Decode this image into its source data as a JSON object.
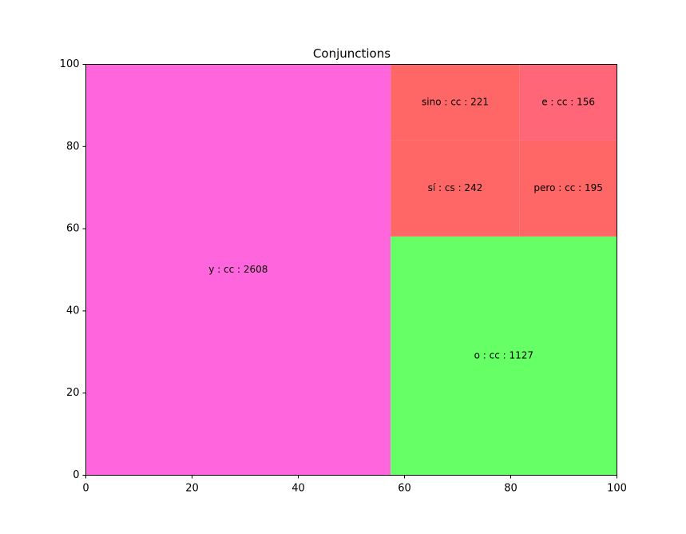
{
  "chart_data": {
    "type": "treemap",
    "title": "Conjunctions",
    "xlabel": "",
    "ylabel": "",
    "xlim": [
      0,
      100
    ],
    "ylim": [
      0,
      100
    ],
    "xticks": [
      "0",
      "20",
      "40",
      "60",
      "80",
      "100"
    ],
    "yticks": [
      "0",
      "20",
      "40",
      "60",
      "80",
      "100"
    ],
    "grid": false,
    "rects": [
      {
        "label": "y : cc : 2608",
        "value": 2608,
        "x": 0,
        "y": 0,
        "dx": 57.4,
        "dy": 100,
        "color": "#ff66dd"
      },
      {
        "label": "o : cc : 1127",
        "value": 1127,
        "x": 57.4,
        "y": 0,
        "dx": 42.6,
        "dy": 58.1,
        "color": "#66ff66"
      },
      {
        "label": "sí : cs : 242",
        "value": 242,
        "x": 57.4,
        "y": 58.1,
        "dx": 24.3,
        "dy": 23.5,
        "color": "#ff6666"
      },
      {
        "label": "sino : cc : 221",
        "value": 221,
        "x": 57.4,
        "y": 81.6,
        "dx": 24.3,
        "dy": 18.4,
        "color": "#ff6666"
      },
      {
        "label": "pero : cc : 195",
        "value": 195,
        "x": 81.7,
        "y": 58.1,
        "dx": 18.3,
        "dy": 23.4,
        "color": "#ff6666"
      },
      {
        "label": "e : cc : 156",
        "value": 156,
        "x": 81.7,
        "y": 81.5,
        "dx": 18.3,
        "dy": 18.5,
        "color": "#ff6677"
      }
    ]
  }
}
